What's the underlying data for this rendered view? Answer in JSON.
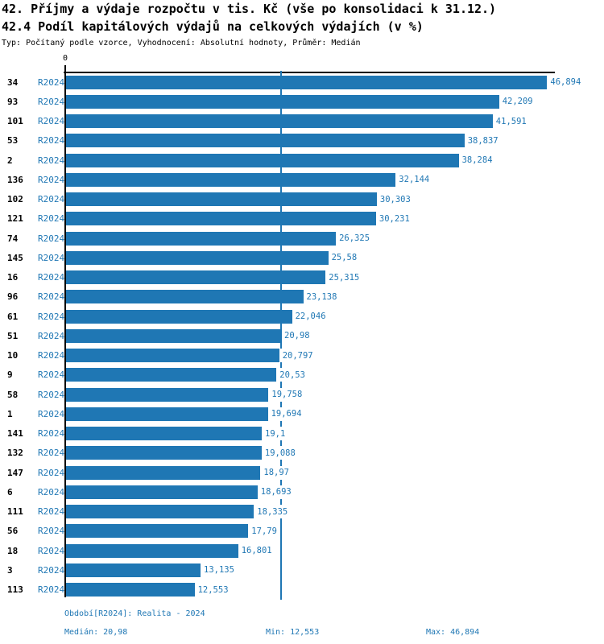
{
  "header": {
    "title_line1": "42. Příjmy a výdaje rozpočtu v tis. Kč (vše po konsolidaci k 31.12.)",
    "title_line2": "42.4 Podíl kapitálových výdajů na celkových výdajích (v %)",
    "meta": "Typ: Počítaný podle vzorce, Vyhodnocení: Absolutní hodnoty, Průměr: Medián"
  },
  "chart_data": {
    "type": "bar",
    "orientation": "horizontal",
    "value_unit": "%",
    "x_axis": {
      "min": 0,
      "zero_label": "0",
      "grid": false
    },
    "median_value": 20.98,
    "series_name": "R2024",
    "rows": [
      {
        "id": "34",
        "series": "R2024",
        "value": 46.894,
        "display": "46,894"
      },
      {
        "id": "93",
        "series": "R2024",
        "value": 42.209,
        "display": "42,209"
      },
      {
        "id": "101",
        "series": "R2024",
        "value": 41.591,
        "display": "41,591"
      },
      {
        "id": "53",
        "series": "R2024",
        "value": 38.837,
        "display": "38,837"
      },
      {
        "id": "2",
        "series": "R2024",
        "value": 38.284,
        "display": "38,284"
      },
      {
        "id": "136",
        "series": "R2024",
        "value": 32.144,
        "display": "32,144"
      },
      {
        "id": "102",
        "series": "R2024",
        "value": 30.303,
        "display": "30,303"
      },
      {
        "id": "121",
        "series": "R2024",
        "value": 30.231,
        "display": "30,231"
      },
      {
        "id": "74",
        "series": "R2024",
        "value": 26.325,
        "display": "26,325"
      },
      {
        "id": "145",
        "series": "R2024",
        "value": 25.58,
        "display": "25,58"
      },
      {
        "id": "16",
        "series": "R2024",
        "value": 25.315,
        "display": "25,315"
      },
      {
        "id": "96",
        "series": "R2024",
        "value": 23.138,
        "display": "23,138"
      },
      {
        "id": "61",
        "series": "R2024",
        "value": 22.046,
        "display": "22,046"
      },
      {
        "id": "51",
        "series": "R2024",
        "value": 20.98,
        "display": "20,98"
      },
      {
        "id": "10",
        "series": "R2024",
        "value": 20.797,
        "display": "20,797"
      },
      {
        "id": "9",
        "series": "R2024",
        "value": 20.53,
        "display": "20,53"
      },
      {
        "id": "58",
        "series": "R2024",
        "value": 19.758,
        "display": "19,758"
      },
      {
        "id": "1",
        "series": "R2024",
        "value": 19.694,
        "display": "19,694"
      },
      {
        "id": "141",
        "series": "R2024",
        "value": 19.1,
        "display": "19,1"
      },
      {
        "id": "132",
        "series": "R2024",
        "value": 19.088,
        "display": "19,088"
      },
      {
        "id": "147",
        "series": "R2024",
        "value": 18.97,
        "display": "18,97"
      },
      {
        "id": "6",
        "series": "R2024",
        "value": 18.693,
        "display": "18,693"
      },
      {
        "id": "111",
        "series": "R2024",
        "value": 18.335,
        "display": "18,335"
      },
      {
        "id": "56",
        "series": "R2024",
        "value": 17.79,
        "display": "17,79"
      },
      {
        "id": "18",
        "series": "R2024",
        "value": 16.801,
        "display": "16,801"
      },
      {
        "id": "3",
        "series": "R2024",
        "value": 13.135,
        "display": "13,135"
      },
      {
        "id": "113",
        "series": "R2024",
        "value": 12.553,
        "display": "12,553"
      }
    ],
    "colors": {
      "bar": "#1f77b4",
      "value_text": "#1f77b4",
      "median_line": "#1f77b4",
      "row_id_text": "#000000"
    }
  },
  "footer": {
    "period": "Období[R2024]: Realita - 2024",
    "median": "Medián: 20,98",
    "min": "Min: 12,553",
    "max": "Max: 46,894"
  }
}
